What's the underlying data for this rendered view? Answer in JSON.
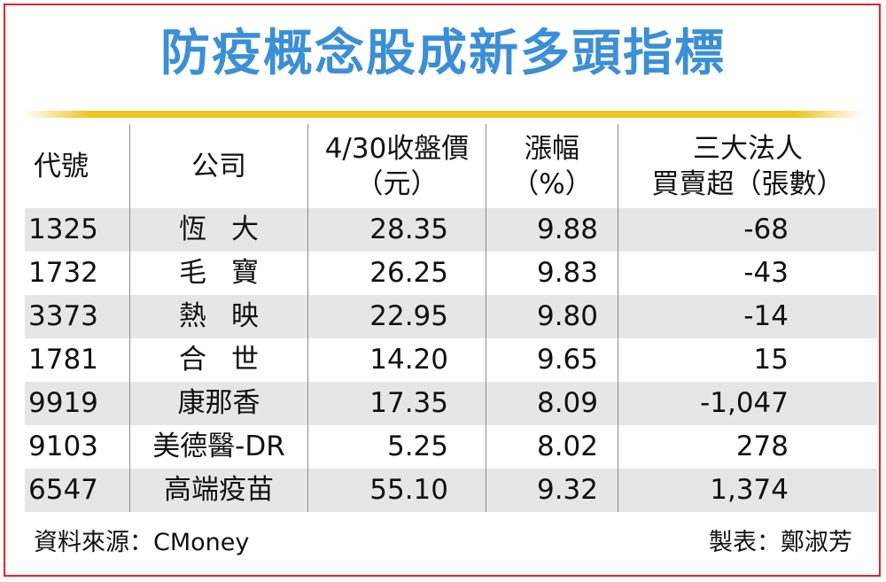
{
  "title": "防疫概念股成新多頭指標",
  "headers": {
    "code": "代號",
    "company": "公司",
    "price_l1": "4/30收盤價",
    "price_l2": "（元）",
    "change_l1": "漲幅",
    "change_l2": "（%）",
    "net_l1": "三大法人",
    "net_l2": "買賣超（張數）"
  },
  "rows": [
    {
      "code": "1325",
      "company": "恆大",
      "price": "28.35",
      "change": "9.88",
      "net": "-68"
    },
    {
      "code": "1732",
      "company": "毛寶",
      "price": "26.25",
      "change": "9.83",
      "net": "-43"
    },
    {
      "code": "3373",
      "company": "熱映",
      "price": "22.95",
      "change": "9.80",
      "net": "-14"
    },
    {
      "code": "1781",
      "company": "合世",
      "price": "14.20",
      "change": "9.65",
      "net": "15"
    },
    {
      "code": "9919",
      "company": "康那香",
      "price": "17.35",
      "change": "8.09",
      "net": "-1,047"
    },
    {
      "code": "9103",
      "company": "美德醫-DR",
      "price": "5.25",
      "change": "8.02",
      "net": "278"
    },
    {
      "code": "6547",
      "company": "高端疫苗",
      "price": "55.10",
      "change": "9.32",
      "net": "1,374"
    }
  ],
  "source": "資料來源：CMoney",
  "credit": "製表：鄭淑芳",
  "colors": {
    "title": "#3b8fd6",
    "frame": "#e8232a",
    "rule": "#f0c41e",
    "shade": "#e6e6e6"
  }
}
